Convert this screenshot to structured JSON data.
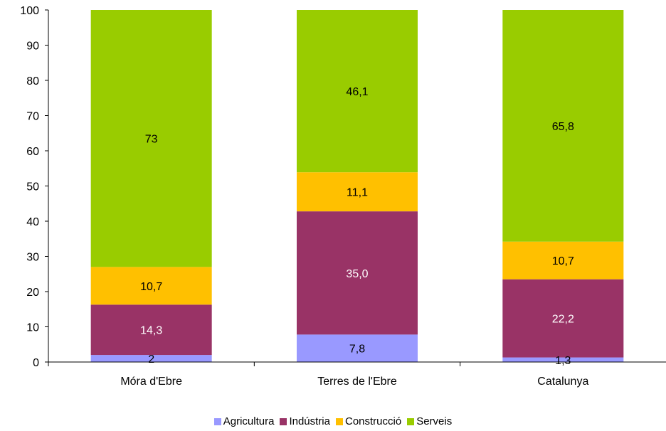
{
  "chart_data": {
    "type": "bar",
    "stacked": true,
    "categories": [
      "Móra d'Ebre",
      "Terres de l'Ebre",
      "Catalunya"
    ],
    "series": [
      {
        "name": "Agricultura",
        "color": "#9999ff",
        "values": [
          2,
          7.8,
          1.3
        ],
        "labels": [
          "2",
          "7,8",
          "1,3"
        ],
        "label_color": "#000000"
      },
      {
        "name": "Indústria",
        "color": "#993366",
        "values": [
          14.3,
          35.0,
          22.2
        ],
        "labels": [
          "14,3",
          "35,0",
          "22,2"
        ],
        "label_color": "#ffffff"
      },
      {
        "name": "Construcció",
        "color": "#ffc000",
        "values": [
          10.7,
          11.1,
          10.7
        ],
        "labels": [
          "10,7",
          "11,1",
          "10,7"
        ],
        "label_color": "#000000"
      },
      {
        "name": "Serveis",
        "color": "#99cc00",
        "values": [
          73,
          46.1,
          65.8
        ],
        "labels": [
          "73",
          "46,1",
          "65,8"
        ],
        "label_color": "#000000"
      }
    ],
    "ylim": [
      0,
      100
    ],
    "yticks": [
      "0",
      "10",
      "20",
      "30",
      "40",
      "50",
      "60",
      "70",
      "80",
      "90",
      "100"
    ],
    "grid": false,
    "legend_position": "bottom",
    "title": "",
    "xlabel": "",
    "ylabel": ""
  }
}
